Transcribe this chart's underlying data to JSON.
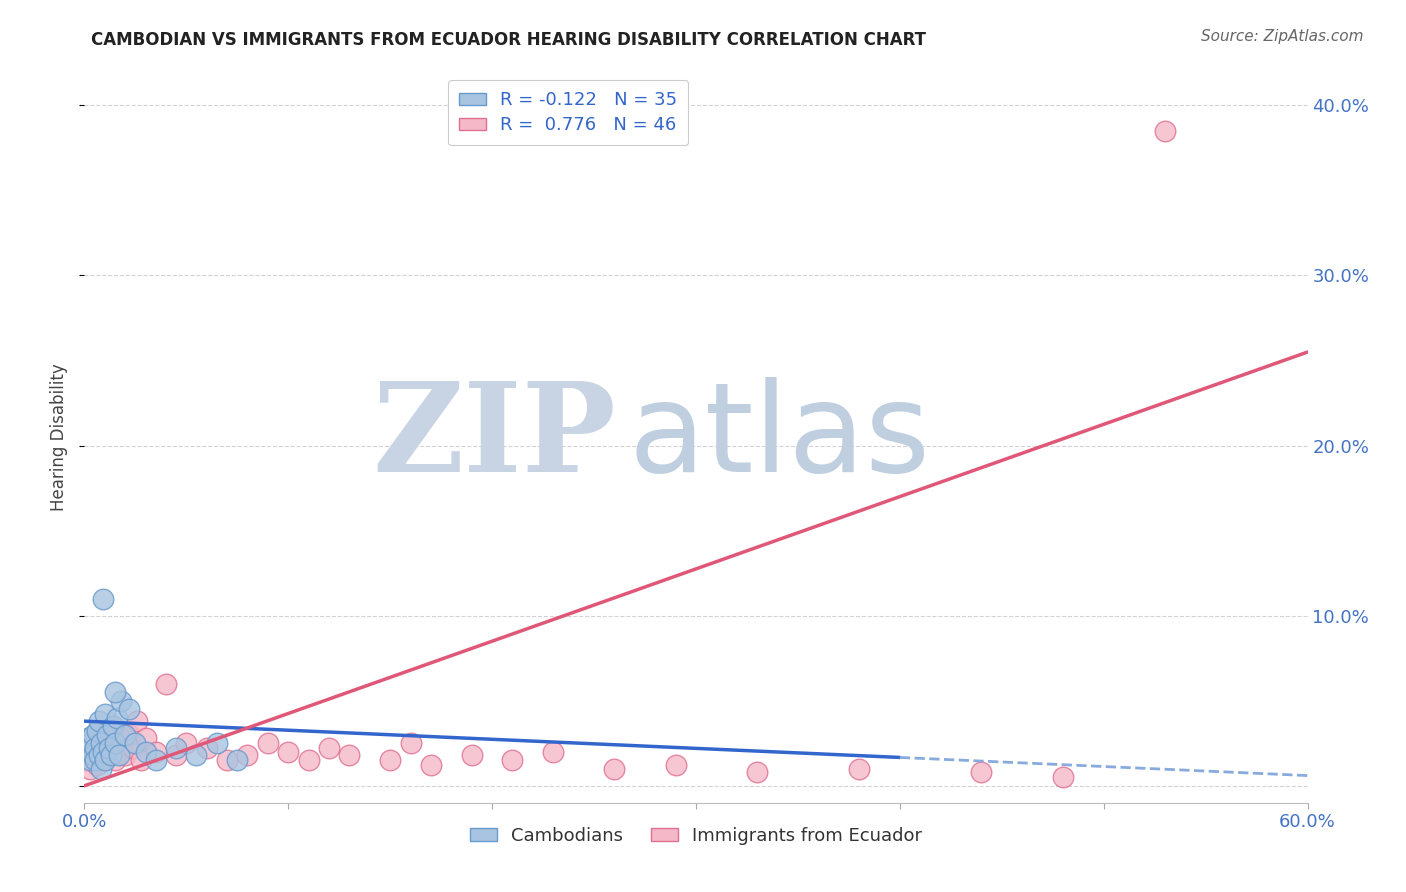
{
  "title": "CAMBODIAN VS IMMIGRANTS FROM ECUADOR HEARING DISABILITY CORRELATION CHART",
  "source": "Source: ZipAtlas.com",
  "ylabel": "Hearing Disability",
  "xlim": [
    0.0,
    0.6
  ],
  "ylim": [
    -0.01,
    0.42
  ],
  "xticks": [
    0.0,
    0.1,
    0.2,
    0.3,
    0.4,
    0.5,
    0.6
  ],
  "xticklabels": [
    "0.0%",
    "",
    "",
    "",
    "",
    "",
    "60.0%"
  ],
  "yticks": [
    0.0,
    0.1,
    0.2,
    0.3,
    0.4
  ],
  "yticklabels_right": [
    "",
    "10.0%",
    "20.0%",
    "30.0%",
    "40.0%"
  ],
  "cambodian_color": "#a8c4e0",
  "cambodian_edge": "#6699cc",
  "ecuador_color": "#f4b8c8",
  "ecuador_edge": "#e07090",
  "cambodian_R": -0.122,
  "cambodian_N": 35,
  "ecuador_R": 0.776,
  "ecuador_N": 46,
  "background_color": "#ffffff",
  "grid_color": "#c8c8c8",
  "blue_line_color": "#3366cc",
  "pink_line_color": "#e05878",
  "blue_dashed_color": "#88aadd",
  "blue_line_start_x": 0.0,
  "blue_line_start_y": 0.038,
  "blue_line_solid_end_x": 0.4,
  "blue_line_end_x": 0.6,
  "blue_line_end_y": 0.006,
  "pink_line_start_x": 0.0,
  "pink_line_start_y": 0.0,
  "pink_line_end_x": 0.6,
  "pink_line_end_y": 0.255,
  "cambodian_points_x": [
    0.001,
    0.002,
    0.003,
    0.003,
    0.004,
    0.004,
    0.005,
    0.005,
    0.006,
    0.007,
    0.007,
    0.008,
    0.008,
    0.009,
    0.01,
    0.01,
    0.011,
    0.012,
    0.013,
    0.014,
    0.015,
    0.016,
    0.017,
    0.018,
    0.02,
    0.022,
    0.025,
    0.03,
    0.035,
    0.045,
    0.055,
    0.065,
    0.075,
    0.015,
    0.009
  ],
  "cambodian_points_y": [
    0.02,
    0.028,
    0.015,
    0.025,
    0.018,
    0.03,
    0.022,
    0.015,
    0.032,
    0.018,
    0.038,
    0.025,
    0.01,
    0.02,
    0.042,
    0.015,
    0.03,
    0.022,
    0.018,
    0.035,
    0.025,
    0.04,
    0.018,
    0.05,
    0.03,
    0.045,
    0.025,
    0.02,
    0.015,
    0.022,
    0.018,
    0.025,
    0.015,
    0.055,
    0.11
  ],
  "ecuador_points_x": [
    0.001,
    0.002,
    0.003,
    0.004,
    0.005,
    0.006,
    0.007,
    0.008,
    0.009,
    0.01,
    0.012,
    0.014,
    0.015,
    0.016,
    0.018,
    0.02,
    0.022,
    0.024,
    0.026,
    0.028,
    0.03,
    0.035,
    0.04,
    0.045,
    0.05,
    0.06,
    0.07,
    0.08,
    0.09,
    0.1,
    0.11,
    0.12,
    0.13,
    0.15,
    0.16,
    0.17,
    0.19,
    0.21,
    0.23,
    0.26,
    0.29,
    0.33,
    0.38,
    0.44,
    0.48,
    0.53
  ],
  "ecuador_points_y": [
    0.015,
    0.02,
    0.01,
    0.025,
    0.018,
    0.012,
    0.03,
    0.015,
    0.022,
    0.018,
    0.025,
    0.035,
    0.015,
    0.02,
    0.028,
    0.018,
    0.03,
    0.022,
    0.038,
    0.015,
    0.028,
    0.02,
    0.06,
    0.018,
    0.025,
    0.022,
    0.015,
    0.018,
    0.025,
    0.02,
    0.015,
    0.022,
    0.018,
    0.015,
    0.025,
    0.012,
    0.018,
    0.015,
    0.02,
    0.01,
    0.012,
    0.008,
    0.01,
    0.008,
    0.005,
    0.385
  ],
  "tick_label_color": "#4472c4",
  "title_color": "#222222",
  "source_color": "#666666",
  "watermark_zip_color": "#c8d4e3",
  "watermark_atlas_color": "#c0cfe0"
}
